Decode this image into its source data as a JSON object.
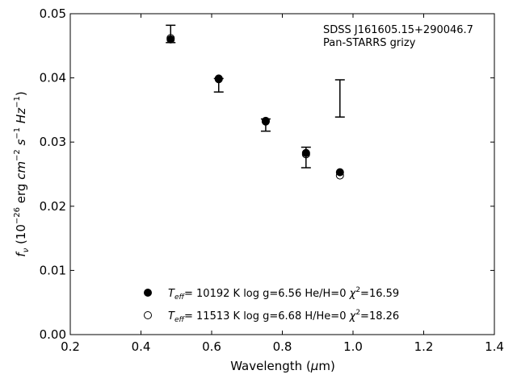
{
  "chart_data": {
    "type": "scatter",
    "title": "",
    "xlabel": "Wavelength (μm)",
    "ylabel": "fν (10⁻²⁶ erg cm⁻² s⁻¹ Hz⁻¹)",
    "xlim": [
      0.2,
      1.4
    ],
    "ylim": [
      0.0,
      0.05
    ],
    "x_ticks": [
      "0.2",
      "0.4",
      "0.6",
      "0.8",
      "1.0",
      "1.2",
      "1.4"
    ],
    "y_ticks": [
      "0.00",
      "0.01",
      "0.02",
      "0.03",
      "0.04",
      "0.05"
    ],
    "annotation": [
      "SDSS J161605.15+290046.7",
      "Pan-STARRS grizy"
    ],
    "observed": {
      "x": [
        0.484,
        0.62,
        0.753,
        0.867,
        0.963
      ],
      "y": [
        0.0469,
        0.0391,
        0.0326,
        0.0276,
        0.0368
      ],
      "yerr_low": [
        0.0455,
        0.0378,
        0.0317,
        0.026,
        0.0339
      ],
      "yerr_high": [
        0.0482,
        0.0399,
        0.0336,
        0.0292,
        0.0397
      ]
    },
    "series": [
      {
        "marker": "filled",
        "legend_teff": "10192 K",
        "legend_logg": "log g=6.56",
        "legend_comp": "He/H=0",
        "legend_chi2": "16.59",
        "x": [
          0.484,
          0.62,
          0.753,
          0.867,
          0.963
        ],
        "y": [
          0.046,
          0.0398,
          0.0332,
          0.0283,
          0.0253
        ]
      },
      {
        "marker": "open",
        "legend_teff": "11513 K",
        "legend_logg": "log g=6.68",
        "legend_comp": "H/He=0",
        "legend_chi2": "18.26",
        "x": [
          0.484,
          0.62,
          0.753,
          0.867,
          0.963
        ],
        "y": [
          0.0462,
          0.0399,
          0.0333,
          0.0281,
          0.0248
        ]
      }
    ],
    "legend_placement": "bottom-center",
    "grid": false
  }
}
